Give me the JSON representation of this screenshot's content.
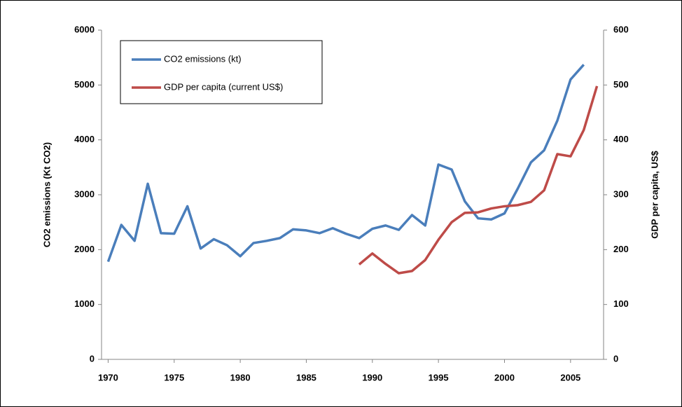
{
  "chart_data": {
    "type": "line",
    "x": [
      1970,
      1971,
      1972,
      1973,
      1974,
      1975,
      1976,
      1977,
      1978,
      1979,
      1980,
      1981,
      1982,
      1983,
      1984,
      1985,
      1986,
      1987,
      1988,
      1989,
      1990,
      1991,
      1992,
      1993,
      1994,
      1995,
      1996,
      1997,
      1998,
      1999,
      2000,
      2001,
      2002,
      2003,
      2004,
      2005,
      2006,
      2007
    ],
    "xlim": [
      1969.5,
      2007.5
    ],
    "xticks": [
      1970,
      1975,
      1980,
      1985,
      1990,
      1995,
      2000,
      2005
    ],
    "ylabel": "CO2 emissions (Kt CO2)",
    "y2label": "GDP per capita, US$",
    "ylim": [
      0,
      6000
    ],
    "yticks": [
      0,
      1000,
      2000,
      3000,
      4000,
      5000,
      6000
    ],
    "y2lim": [
      0,
      600
    ],
    "y2ticks": [
      0,
      100,
      200,
      300,
      400,
      500,
      600
    ],
    "grid": false,
    "legend": "upper left",
    "series": [
      {
        "name": "CO2 emissions (kt)",
        "color": "#4a7ebb",
        "values": [
          1780,
          2450,
          2160,
          3200,
          2300,
          2290,
          2790,
          2020,
          2190,
          2080,
          1880,
          2120,
          2160,
          2210,
          2370,
          2350,
          2300,
          2390,
          2290,
          2210,
          2380,
          2440,
          2360,
          2630,
          2440,
          3550,
          3460,
          2880,
          2570,
          2550,
          2660,
          3110,
          3590,
          3810,
          4350,
          5100,
          5370,
          null
        ]
      },
      {
        "name": "GDP per capita (current US$)",
        "color": "#be4b48",
        "axis": "y2",
        "values": [
          null,
          null,
          null,
          null,
          null,
          null,
          null,
          null,
          null,
          null,
          null,
          null,
          null,
          null,
          null,
          null,
          null,
          null,
          null,
          173,
          193,
          174,
          157,
          161,
          181,
          218,
          250,
          267,
          268,
          275,
          279,
          281,
          287,
          308,
          374,
          370,
          418,
          498
        ]
      }
    ]
  }
}
